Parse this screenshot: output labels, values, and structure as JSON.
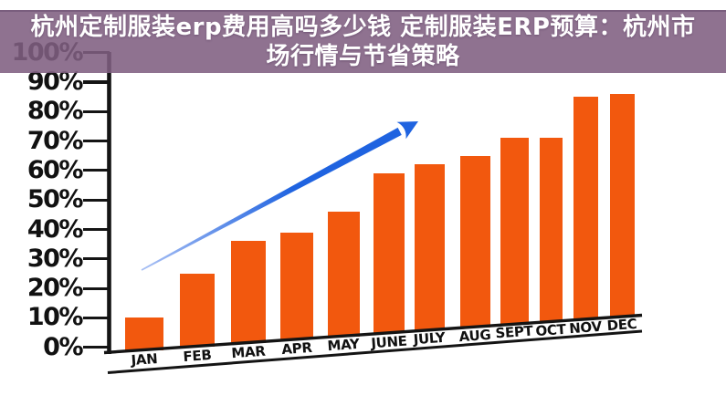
{
  "page": {
    "background_color": "#ffffff"
  },
  "banner": {
    "background_rgba": "rgba(127,94,129,0.88)",
    "solid_color_over_white": "#8e7190",
    "text_color": "#ffffff",
    "title_line1": "杭州定制服装erp费用高吗多少钱 定制服装ERP预算：杭州市",
    "title_line2": "场行情与节省策略",
    "full_title": "杭州定制服装erp费用高吗多少钱 定制服装ERP预算：杭州市场行情与节省策略"
  },
  "chart_data": {
    "type": "bar",
    "title": "杭州定制服装erp费用高吗多少钱 定制服装ERP预算：杭州市场行情与节省策略",
    "categories": [
      "JAN",
      "FEB",
      "MAR",
      "APR",
      "MAY",
      "JUNE",
      "JULY",
      "AUG",
      "SEPT",
      "OCT",
      "NOV",
      "DEC"
    ],
    "values": [
      10,
      25,
      36,
      39,
      46,
      59,
      62,
      65,
      71,
      71,
      85,
      86
    ],
    "unit": "percent",
    "xlabel": "",
    "ylabel": "",
    "ylim": [
      0,
      100
    ],
    "y_ticks": [
      "100%",
      "90%",
      "80%",
      "70%",
      "60%",
      "50%",
      "40%",
      "30%",
      "20%",
      "10%",
      "0%"
    ],
    "grid": false,
    "legend": false,
    "data_labels": false,
    "bar_color": "#f2580e",
    "axis_color": "#141414",
    "tick_label_color": "#111111",
    "annotations": [
      {
        "type": "trend-arrow",
        "direction": "up-right",
        "color": "#1f63e0",
        "tail_color": "#a9c0f4"
      }
    ],
    "style_notes": "clip-art chart: x-axis baseline and month-label strip slant upward to the right"
  }
}
